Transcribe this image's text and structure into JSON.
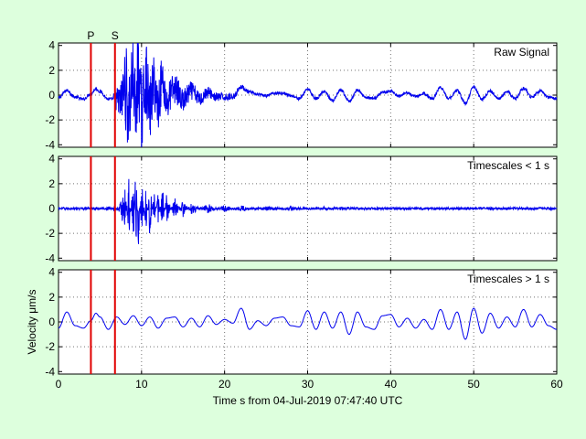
{
  "chart_data": {
    "type": "line",
    "xlabel": "Time s from 04-Jul-2019 07:47:40 UTC",
    "ylabel": "Velocity μm/s",
    "xlim": [
      0,
      60
    ],
    "xticks": [
      0,
      10,
      20,
      30,
      40,
      50,
      60
    ],
    "grid": true,
    "line_color": "#0000ee",
    "phase_color": "#e00000",
    "background": "#ddffdd",
    "phase_markers": [
      {
        "label": "P",
        "x": 3.9
      },
      {
        "label": "S",
        "x": 6.8
      }
    ],
    "panels": [
      {
        "label": "Raw Signal",
        "ylim": [
          -4.2,
          4.2
        ],
        "yticks": [
          -4,
          -2,
          0,
          2,
          4
        ],
        "shows_xtick_labels": false,
        "series": {
          "x": [
            0,
            1,
            2,
            3,
            3.9,
            4.5,
            5,
            6,
            6.8,
            7.5,
            8,
            8.5,
            9,
            9.3,
            9.6,
            10,
            10.5,
            11,
            11.5,
            12,
            12.5,
            13,
            14,
            15,
            16,
            17,
            18,
            19,
            20,
            21,
            22,
            23,
            24,
            25,
            26,
            27,
            28,
            29,
            30,
            31,
            32,
            33,
            34,
            35,
            36,
            37,
            38,
            39,
            40,
            41,
            42,
            43,
            44,
            45,
            46,
            47,
            48,
            49,
            50,
            51,
            52,
            53,
            54,
            55,
            56,
            57,
            58,
            59,
            60
          ],
          "y": [
            -0.4,
            0.7,
            -0.3,
            -0.6,
            0.2,
            0.9,
            0.5,
            -0.6,
            -0.5,
            -1.2,
            1.6,
            -2.4,
            3.5,
            -3.9,
            3.8,
            -2.8,
            2.4,
            -2.0,
            1.7,
            -1.4,
            2.5,
            -1.0,
            1.0,
            -0.8,
            0.6,
            -0.5,
            0.4,
            -0.3,
            -0.3,
            -0.2,
            1.2,
            0.4,
            0.1,
            -0.1,
            0.3,
            0.3,
            -0.1,
            -0.5,
            0.9,
            -0.5,
            0.5,
            -0.8,
            0.7,
            -0.9,
            0.7,
            -0.3,
            -0.5,
            0.4,
            0.6,
            -0.2,
            0.3,
            -0.2,
            0.2,
            -0.5,
            1.1,
            -0.5,
            0.7,
            -1.2,
            1.2,
            -0.6,
            0.6,
            -0.5,
            0.5,
            -0.5,
            1.0,
            -0.3,
            0.6,
            -0.3,
            -0.5
          ]
        }
      },
      {
        "label": "Timescales < 1 s",
        "ylim": [
          -4.2,
          4.2
        ],
        "yticks": [
          -4,
          -2,
          0,
          2,
          4
        ],
        "shows_xtick_labels": false,
        "series": {
          "x": [
            0,
            2,
            3.9,
            5,
            6,
            6.8,
            7.5,
            8,
            8.5,
            9,
            9.3,
            9.6,
            10,
            10.5,
            11,
            11.5,
            12,
            12.5,
            13,
            14,
            15,
            16,
            18,
            20,
            22,
            25,
            28,
            30,
            32,
            35,
            40,
            45,
            50,
            55,
            60
          ],
          "y": [
            0.05,
            -0.05,
            0.1,
            -0.1,
            0.2,
            -0.3,
            0.6,
            2.0,
            -2.8,
            3.6,
            -4.1,
            3.4,
            -2.8,
            2.0,
            -2.3,
            1.5,
            -1.4,
            2.0,
            -1.2,
            0.9,
            -0.7,
            0.5,
            -0.4,
            0.3,
            -0.25,
            0.2,
            -0.2,
            0.15,
            -0.15,
            0.12,
            -0.1,
            0.1,
            -0.1,
            0.08,
            0.0
          ]
        }
      },
      {
        "label": "Timescales > 1 s",
        "ylim": [
          -4.2,
          4.2
        ],
        "yticks": [
          -4,
          -2,
          0,
          2,
          4
        ],
        "shows_xtick_labels": true,
        "series": {
          "x": [
            0,
            1,
            2,
            3,
            3.9,
            4.5,
            5,
            6,
            7,
            8,
            9,
            10,
            11,
            12,
            13,
            14,
            15,
            16,
            17,
            18,
            19,
            20,
            21,
            22,
            23,
            24,
            25,
            26,
            27,
            28,
            29,
            30,
            31,
            32,
            33,
            34,
            35,
            36,
            37,
            38,
            39,
            40,
            41,
            42,
            43,
            44,
            45,
            46,
            47,
            48,
            49,
            50,
            51,
            52,
            53,
            54,
            55,
            56,
            57,
            58,
            59,
            60
          ],
          "y": [
            -0.5,
            0.8,
            -0.3,
            -0.5,
            0.1,
            0.7,
            0.4,
            -0.6,
            0.4,
            -0.2,
            0.5,
            -0.3,
            0.4,
            -0.5,
            0.3,
            0.4,
            -0.4,
            0.3,
            -0.4,
            0.5,
            -0.2,
            0.2,
            -0.1,
            1.1,
            -0.6,
            0.1,
            -0.3,
            0.3,
            0.4,
            -0.3,
            -0.4,
            0.9,
            -0.6,
            0.8,
            -0.5,
            0.8,
            -1.0,
            0.8,
            -0.4,
            -0.6,
            0.5,
            0.6,
            -0.4,
            0.3,
            -0.5,
            0.2,
            -0.6,
            1.0,
            -0.6,
            0.8,
            -1.4,
            1.1,
            -0.9,
            0.7,
            -0.5,
            0.4,
            -0.4,
            1.0,
            -0.4,
            0.6,
            -0.3,
            -0.6
          ]
        }
      }
    ]
  }
}
